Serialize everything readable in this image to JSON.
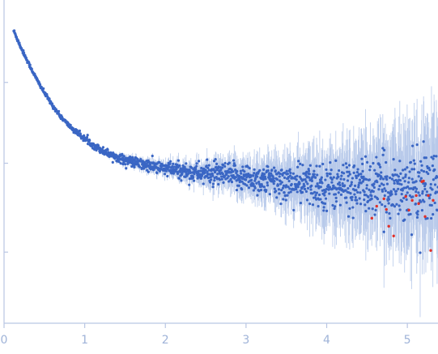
{
  "chart_data": {
    "type": "scatter",
    "title": "",
    "xlabel": "",
    "ylabel": "",
    "xlim": [
      0,
      5.38
    ],
    "ylim": [
      0,
      1
    ],
    "y_scale": "log",
    "grid": false,
    "legend": "none",
    "x_ticks": [
      "0",
      "1",
      "2",
      "3",
      "4",
      "5"
    ],
    "y_ticks_labeled": false,
    "series": [
      {
        "role": "measured",
        "color": "#3a66c4",
        "error_bar_color": "#b7c9ea",
        "curve_x": [
          0.12,
          0.2,
          0.3,
          0.4,
          0.5,
          0.6,
          0.7,
          0.8,
          0.9,
          1.0,
          1.1,
          1.2,
          1.35,
          1.5,
          1.7,
          1.9,
          2.1,
          2.3,
          2.5,
          2.7,
          2.9,
          3.1,
          3.3,
          3.5,
          3.7,
          3.9,
          4.1,
          4.3,
          4.5,
          4.7,
          4.9,
          5.1,
          5.3
        ],
        "curve_y": [
          0.905,
          0.858,
          0.806,
          0.757,
          0.713,
          0.674,
          0.64,
          0.613,
          0.59,
          0.571,
          0.553,
          0.536,
          0.519,
          0.505,
          0.492,
          0.482,
          0.474,
          0.468,
          0.463,
          0.459,
          0.454,
          0.447,
          0.44,
          0.435,
          0.43,
          0.427,
          0.424,
          0.423,
          0.422,
          0.421,
          0.421,
          0.42,
          0.42
        ]
      },
      {
        "role": "outliers",
        "color": "#e0302a",
        "points": [
          [
            4.56,
            0.325
          ],
          [
            4.62,
            0.362
          ],
          [
            4.71,
            0.385
          ],
          [
            4.74,
            0.352
          ],
          [
            4.77,
            0.3
          ],
          [
            4.83,
            0.27
          ],
          [
            4.98,
            0.392
          ],
          [
            5.02,
            0.35
          ],
          [
            5.06,
            0.38
          ],
          [
            5.11,
            0.395
          ],
          [
            5.14,
            0.37
          ],
          [
            5.18,
            0.438
          ],
          [
            5.2,
            0.44
          ],
          [
            5.22,
            0.33
          ],
          [
            5.26,
            0.395
          ],
          [
            5.29,
            0.225
          ],
          [
            5.32,
            0.38
          ]
        ]
      }
    ]
  }
}
